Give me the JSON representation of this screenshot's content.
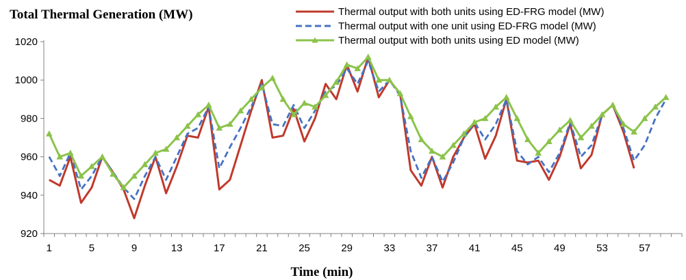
{
  "chart_data": {
    "type": "line",
    "title": "Total Thermal Generation (MW)",
    "xlabel": "Time (min)",
    "ylabel": "",
    "ylim": [
      920,
      1020
    ],
    "yticks": [
      920,
      940,
      960,
      980,
      1000,
      1020
    ],
    "xticks": [
      1,
      5,
      9,
      13,
      17,
      21,
      25,
      29,
      33,
      37,
      41,
      45,
      49,
      53,
      57
    ],
    "grid": false,
    "legend_position": "top-right",
    "x": [
      1,
      2,
      3,
      4,
      5,
      6,
      7,
      8,
      9,
      10,
      11,
      12,
      13,
      14,
      15,
      16,
      17,
      18,
      19,
      20,
      21,
      22,
      23,
      24,
      25,
      26,
      27,
      28,
      29,
      30,
      31,
      32,
      33,
      34,
      35,
      36,
      37,
      38,
      39,
      40,
      41,
      42,
      43,
      44,
      45,
      46,
      47,
      48,
      49,
      50,
      51,
      52,
      53,
      54,
      55,
      56,
      57,
      58,
      59,
      60
    ],
    "series": [
      {
        "name": "Thermal output with both units using ED-FRG model (MW)",
        "color": "#c0392b",
        "dash": "solid",
        "marker": "none",
        "values": [
          948,
          945,
          960,
          936,
          944,
          960,
          952,
          943,
          928,
          945,
          960,
          941,
          955,
          971,
          970,
          986,
          943,
          948,
          966,
          984,
          1000,
          970,
          971,
          985,
          968,
          980,
          998,
          990,
          1008,
          994,
          1012,
          991,
          1000,
          993,
          953,
          945,
          960,
          944,
          960,
          970,
          977,
          959,
          971,
          990,
          958,
          957,
          958,
          948,
          960,
          977,
          954,
          961,
          982,
          987,
          973,
          954,
          null,
          null,
          null,
          null
        ]
      },
      {
        "name": "Thermal output with one unit using ED-FRG model (MW)",
        "color": "#4472c4",
        "dash": "dash",
        "marker": "none",
        "values": [
          960,
          950,
          962,
          943,
          950,
          960,
          952,
          944,
          938,
          950,
          960,
          948,
          960,
          972,
          975,
          986,
          954,
          965,
          975,
          986,
          998,
          977,
          976,
          987,
          975,
          984,
          994,
          997,
          1006,
          998,
          1010,
          994,
          1000,
          992,
          963,
          949,
          960,
          947,
          957,
          970,
          978,
          969,
          977,
          990,
          963,
          956,
          960,
          952,
          962,
          978,
          960,
          966,
          982,
          987,
          975,
          958,
          966,
          980,
          990,
          null
        ]
      },
      {
        "name": "Thermal output with both units using ED model (MW)",
        "color": "#8bc34a",
        "dash": "solid",
        "marker": "triangle",
        "values": [
          972,
          960,
          962,
          950,
          955,
          960,
          951,
          944,
          950,
          956,
          962,
          964,
          970,
          976,
          982,
          987,
          975,
          977,
          984,
          990,
          996,
          1001,
          990,
          982,
          988,
          986,
          992,
          999,
          1008,
          1006,
          1012,
          1000,
          1000,
          993,
          981,
          969,
          963,
          960,
          966,
          972,
          978,
          980,
          986,
          991,
          980,
          969,
          962,
          968,
          974,
          979,
          970,
          976,
          982,
          987,
          977,
          973,
          980,
          986,
          991,
          null
        ]
      }
    ]
  }
}
